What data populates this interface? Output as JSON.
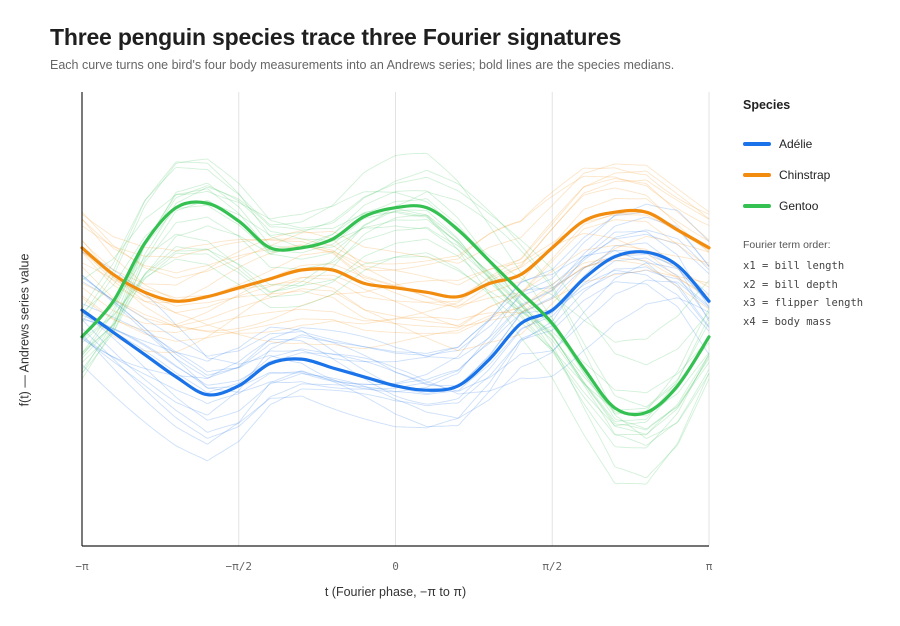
{
  "title": "Three penguin species trace three Fourier signatures",
  "subtitle": "Each curve turns one bird's four body measurements into an Andrews series; bold lines are the species medians.",
  "chart_data": {
    "type": "line",
    "title": "Three penguin species trace three Fourier signatures",
    "xlabel": "t (Fourier phase, −π to π)",
    "ylabel": "f(t) — Andrews series value",
    "xlim": [
      -3.14159,
      3.14159
    ],
    "ylim": [
      -5.5,
      4.7
    ],
    "x_ticks": [
      {
        "value": -3.14159,
        "label": "−π"
      },
      {
        "value": -1.5708,
        "label": "−π/2"
      },
      {
        "value": 0,
        "label": "0"
      },
      {
        "value": 1.5708,
        "label": "π/2"
      },
      {
        "value": 3.14159,
        "label": "π"
      }
    ],
    "grid": "vertical",
    "legend_title": "Species",
    "legend_position": "right",
    "x": [
      -3.14159,
      -2.82743,
      -2.51327,
      -2.19911,
      -1.88496,
      -1.5708,
      -1.25664,
      -0.94248,
      -0.62832,
      -0.31416,
      0,
      0.31416,
      0.62832,
      0.94248,
      1.25664,
      1.5708,
      1.88496,
      2.19911,
      2.51327,
      2.82743,
      3.14159
    ],
    "series": [
      {
        "name": "Adélie",
        "color": "#1a73e8",
        "median": [
          -0.2,
          -0.7,
          -1.2,
          -1.7,
          -2.1,
          -1.9,
          -1.4,
          -1.3,
          -1.5,
          -1.7,
          -1.9,
          -2.0,
          -1.9,
          -1.3,
          -0.5,
          -0.2,
          0.5,
          1.0,
          1.1,
          0.8,
          0.0
        ]
      },
      {
        "name": "Chinstrap",
        "color": "#f28c0f",
        "median": [
          1.2,
          0.6,
          0.2,
          0.0,
          0.1,
          0.3,
          0.5,
          0.7,
          0.7,
          0.4,
          0.3,
          0.2,
          0.1,
          0.4,
          0.6,
          1.2,
          1.8,
          2.0,
          2.0,
          1.6,
          1.2
        ]
      },
      {
        "name": "Gentoo",
        "color": "#34c152",
        "median": [
          -0.8,
          0.0,
          1.3,
          2.1,
          2.2,
          1.8,
          1.2,
          1.2,
          1.4,
          1.9,
          2.1,
          2.1,
          1.6,
          0.9,
          0.2,
          -0.5,
          -1.5,
          -2.4,
          -2.5,
          -1.9,
          -0.8
        ]
      }
    ],
    "terms_title": "Fourier term order:",
    "terms": [
      "x1 = bill length",
      "x2 = bill depth",
      "x3 = flipper length",
      "x4 = body mass"
    ]
  }
}
